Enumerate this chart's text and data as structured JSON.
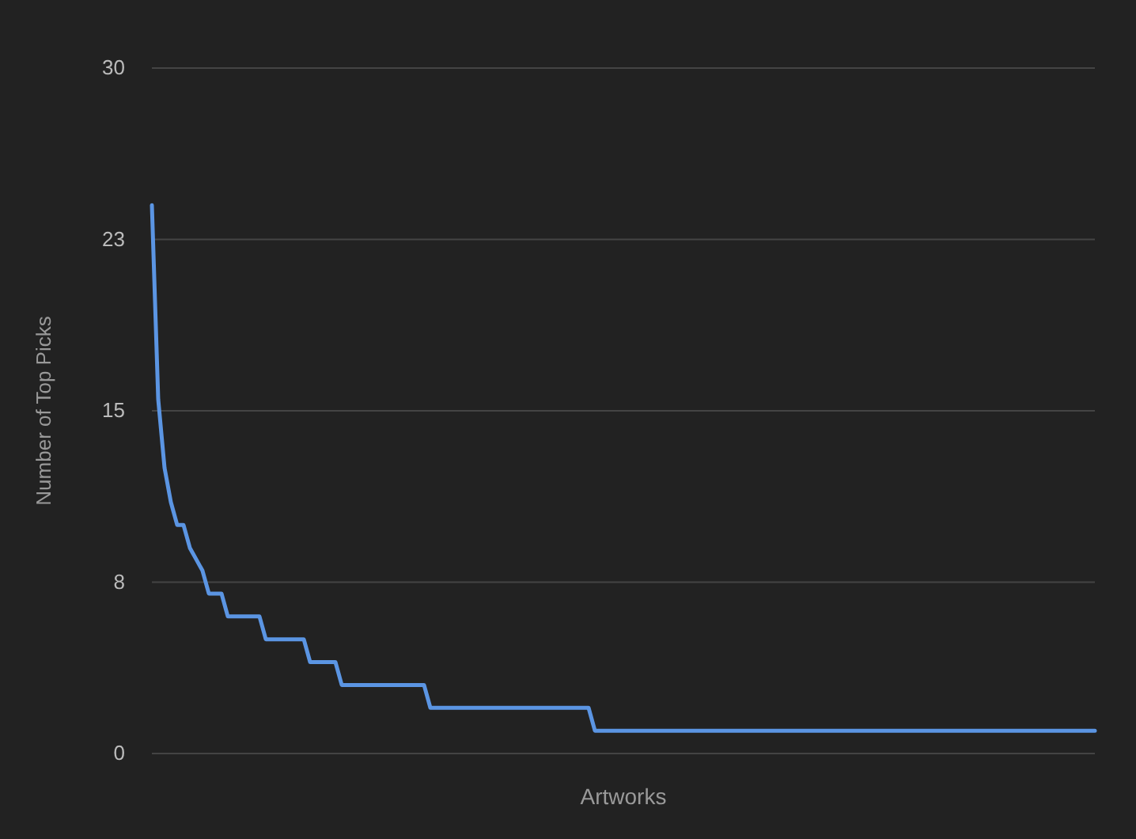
{
  "chart_data": {
    "type": "line",
    "xlabel": "Artworks",
    "ylabel": "Number of Top Picks",
    "categories": [
      null,
      null,
      null,
      null,
      null,
      null,
      null,
      null,
      null,
      null,
      null,
      null,
      null,
      null,
      null,
      null,
      null,
      null,
      null,
      null,
      null,
      null,
      null,
      null,
      null,
      null,
      null,
      null,
      null,
      null,
      null,
      null,
      null,
      null,
      null,
      null,
      null,
      null,
      null,
      null,
      null,
      null,
      null,
      null,
      null,
      null,
      null,
      null,
      null,
      null,
      null,
      null,
      null,
      null,
      null,
      null,
      null,
      null,
      null,
      null,
      null,
      null,
      null,
      null,
      null,
      null,
      null,
      null,
      null,
      null,
      null,
      null,
      null,
      null,
      null,
      null,
      null,
      null,
      null,
      null,
      null,
      null,
      null,
      null,
      null,
      null,
      null,
      null,
      null,
      null,
      null,
      null,
      null,
      null,
      null,
      null,
      null,
      null,
      null,
      null,
      null,
      null,
      null,
      null,
      null,
      null,
      null,
      null,
      null,
      null,
      null,
      null,
      null,
      null,
      null,
      null,
      null,
      null,
      null,
      null,
      null,
      null,
      null,
      null,
      null,
      null,
      null,
      null,
      null,
      null,
      null,
      null,
      null,
      null,
      null,
      null,
      null,
      null,
      null,
      null,
      null,
      null,
      null,
      null,
      null,
      null,
      null,
      null,
      null,
      null
    ],
    "series": [
      {
        "color": "#5b95e3",
        "values": [
          24,
          15.5,
          12.5,
          11,
          10,
          10,
          9,
          8.5,
          8,
          7,
          7,
          7,
          6,
          6,
          6,
          6,
          6,
          6,
          5,
          5,
          5,
          5,
          5,
          5,
          5,
          4,
          4,
          4,
          4,
          4,
          3,
          3,
          3,
          3,
          3,
          3,
          3,
          3,
          3,
          3,
          3,
          3,
          3,
          3,
          2,
          2,
          2,
          2,
          2,
          2,
          2,
          2,
          2,
          2,
          2,
          2,
          2,
          2,
          2,
          2,
          2,
          2,
          2,
          2,
          2,
          2,
          2,
          2,
          2,
          2,
          1,
          1,
          1,
          1,
          1,
          1,
          1,
          1,
          1,
          1,
          1,
          1,
          1,
          1,
          1,
          1,
          1,
          1,
          1,
          1,
          1,
          1,
          1,
          1,
          1,
          1,
          1,
          1,
          1,
          1,
          1,
          1,
          1,
          1,
          1,
          1,
          1,
          1,
          1,
          1,
          1,
          1,
          1,
          1,
          1,
          1,
          1,
          1,
          1,
          1,
          1,
          1,
          1,
          1,
          1,
          1,
          1,
          1,
          1,
          1,
          1,
          1,
          1,
          1,
          1,
          1,
          1,
          1,
          1,
          1,
          1,
          1,
          1,
          1,
          1,
          1,
          1,
          1,
          1,
          1
        ]
      }
    ],
    "ylim": [
      0,
      30
    ],
    "yticks": [
      0,
      {
        "value": 7.5,
        "label": "8"
      },
      15,
      {
        "value": 22.5,
        "label": "23"
      },
      30
    ],
    "grid": "y",
    "marker": "none",
    "line_style": "solid"
  }
}
